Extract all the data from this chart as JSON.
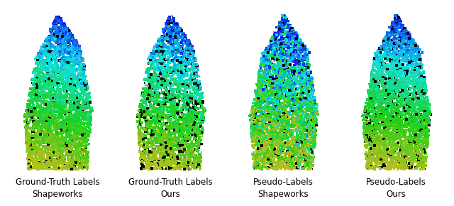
{
  "labels": [
    [
      "Ground-Truth Labels",
      "Shapeworks"
    ],
    [
      "Ground-Truth Labels",
      "Ours"
    ],
    [
      "Pseudo-Labels",
      "Shapeworks"
    ],
    [
      "Pseudo-Labels",
      "Ours"
    ]
  ],
  "n_points": 3500,
  "background_color": "#ffffff",
  "label_fontsize": 8.5,
  "figure_width": 6.4,
  "figure_height": 2.9,
  "marker_size": 7.0
}
